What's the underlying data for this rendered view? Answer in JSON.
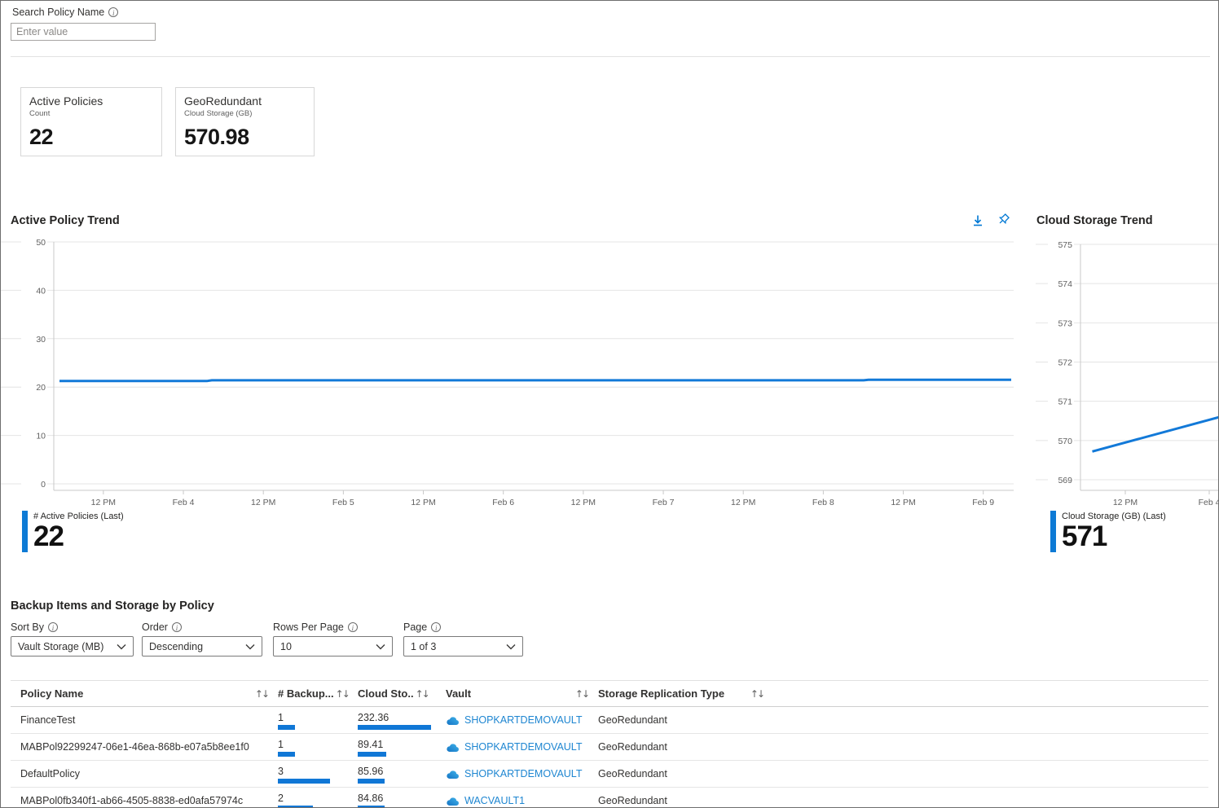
{
  "search": {
    "label": "Search Policy Name",
    "placeholder": "Enter value"
  },
  "cards": [
    {
      "title": "Active Policies",
      "subtitle": "Count",
      "value": "22"
    },
    {
      "title": "GeoRedundant",
      "subtitle": "Cloud Storage (GB)",
      "value": "570.98"
    }
  ],
  "colors": {
    "accent": "#0d7ad5",
    "line": "#1279d8",
    "bar": "#1077d6",
    "link": "#1e86d1"
  },
  "toolbar_icons": [
    "download-icon",
    "pin-icon"
  ],
  "chart_data": [
    {
      "type": "line",
      "title": "Active Policy Trend",
      "xlabel": "",
      "ylabel": "",
      "ylim": [
        0,
        50
      ],
      "y_ticks": [
        0,
        10,
        20,
        30,
        40,
        50
      ],
      "x_ticks": [
        "12 PM",
        "Feb 4",
        "12 PM",
        "Feb 5",
        "12 PM",
        "Feb 6",
        "12 PM",
        "Feb 7",
        "12 PM",
        "Feb 8",
        "12 PM",
        "Feb 9"
      ],
      "grid": true,
      "legend_position": "bottom-left",
      "series": [
        {
          "name": "# Active Policies",
          "points": [
            [
              0,
              21.25
            ],
            [
              0.155,
              21.25
            ],
            [
              0.16,
              21.4
            ],
            [
              0.845,
              21.4
            ],
            [
              0.85,
              21.5
            ],
            [
              1,
              21.5
            ]
          ]
        }
      ],
      "legend": {
        "label": "# Active Policies (Last)",
        "value": "22"
      }
    },
    {
      "type": "line",
      "title": "Cloud Storage Trend",
      "xlabel": "",
      "ylabel": "",
      "ylim": [
        569,
        575
      ],
      "y_ticks": [
        569,
        570,
        571,
        572,
        573,
        574,
        575
      ],
      "x_ticks": [
        "12 PM",
        "Feb 4"
      ],
      "grid": true,
      "legend_position": "bottom-left",
      "series": [
        {
          "name": "Cloud Storage (GB)",
          "points": [
            [
              0.04,
              569.72
            ],
            [
              1,
              570.6
            ]
          ]
        }
      ],
      "legend": {
        "label": "Cloud Storage (GB) (Last)",
        "value": "571"
      }
    }
  ],
  "table": {
    "title": "Backup Items and Storage by Policy",
    "filters": {
      "sort_by": {
        "label": "Sort By",
        "value": "Vault Storage (MB)"
      },
      "order": {
        "label": "Order",
        "value": "Descending"
      },
      "rows_per_page": {
        "label": "Rows Per Page",
        "value": "10"
      },
      "page": {
        "label": "Page",
        "value": "1 of 3"
      }
    },
    "columns": [
      "Policy Name",
      "# Backup...",
      "Cloud Sto..",
      "Vault",
      "Storage Replication Type"
    ],
    "sort_icon": "↑↓",
    "rows": [
      {
        "policy_name": "FinanceTest",
        "backup_items": 1,
        "cloud_storage": 232.36,
        "vault": "SHOPKARTDEMOVAULT",
        "replication_type": "GeoRedundant"
      },
      {
        "policy_name": "MABPol92299247-06e1-46ea-868b-e07a5b8ee1f0",
        "backup_items": 1,
        "cloud_storage": 89.41,
        "vault": "SHOPKARTDEMOVAULT",
        "replication_type": "GeoRedundant"
      },
      {
        "policy_name": "DefaultPolicy",
        "backup_items": 3,
        "cloud_storage": 85.96,
        "vault": "SHOPKARTDEMOVAULT",
        "replication_type": "GeoRedundant"
      },
      {
        "policy_name": "MABPol0fb340f1-ab66-4505-8838-ed0afa57974c",
        "backup_items": 2,
        "cloud_storage": 84.86,
        "vault": "WACVAULT1",
        "replication_type": "GeoRedundant"
      }
    ]
  }
}
